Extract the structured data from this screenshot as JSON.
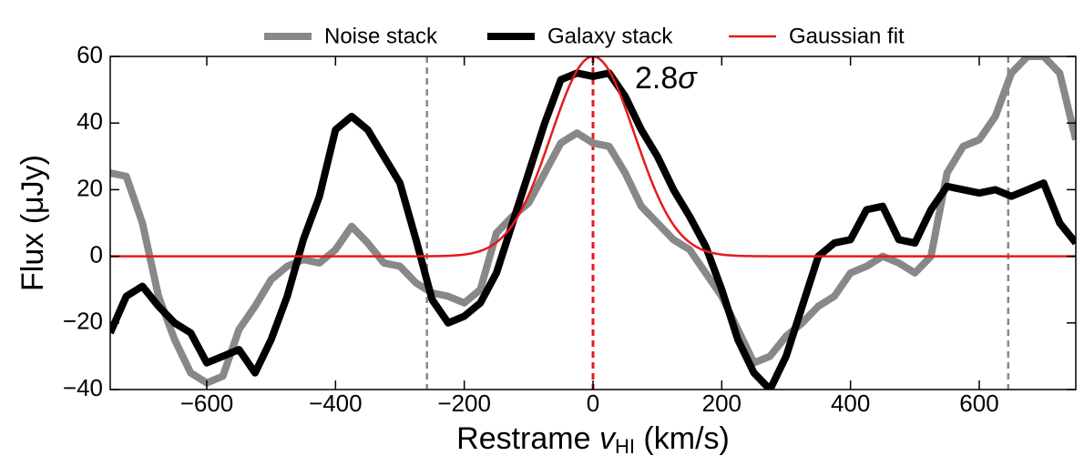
{
  "chart_data": {
    "type": "line",
    "ylabel": "Flux (μJy)",
    "xlabel": [
      "Restrame",
      "v",
      "HI",
      "(km/s)"
    ],
    "annotation": [
      "2.8",
      "σ"
    ],
    "xlim": [
      -750,
      750
    ],
    "ylim": [
      -40,
      60
    ],
    "xticks": [
      {
        "value": -600,
        "label": "−600"
      },
      {
        "value": -400,
        "label": "−400"
      },
      {
        "value": -200,
        "label": "−200"
      },
      0,
      200,
      400,
      600
    ],
    "yticks": [
      {
        "value": -40,
        "label": "−40"
      },
      {
        "value": -20,
        "label": "−20"
      },
      0,
      20,
      40,
      60
    ],
    "x": [
      -750,
      -725,
      -700,
      -675,
      -650,
      -625,
      -600,
      -575,
      -550,
      -525,
      -500,
      -475,
      -450,
      -425,
      -400,
      -375,
      -350,
      -325,
      -300,
      -275,
      -250,
      -225,
      -200,
      -175,
      -150,
      -125,
      -100,
      -75,
      -50,
      -25,
      0,
      25,
      50,
      75,
      100,
      125,
      150,
      175,
      200,
      225,
      250,
      275,
      300,
      325,
      350,
      375,
      400,
      425,
      450,
      475,
      500,
      525,
      550,
      575,
      600,
      625,
      650,
      675,
      700,
      725,
      750
    ],
    "series": [
      {
        "name": "Noise stack",
        "color": "#888888",
        "values": [
          25,
          24,
          10,
          -12,
          -25,
          -35,
          -38,
          -36,
          -22,
          -15,
          -7,
          -3,
          -1,
          -2,
          2,
          9,
          4,
          -2,
          -3,
          -8,
          -11,
          -12,
          -14,
          -10,
          7,
          12,
          16,
          25,
          34,
          37,
          34,
          33,
          25,
          15,
          10,
          5,
          2,
          -5,
          -12,
          -22,
          -32,
          -30,
          -24,
          -20,
          -15,
          -12,
          -5,
          -3,
          0,
          -2,
          -5,
          0,
          25,
          33,
          35,
          42,
          55,
          60,
          60,
          55,
          35
        ]
      },
      {
        "name": "Galaxy stack",
        "color": "#000000",
        "values": [
          -23,
          -12,
          -9,
          -15,
          -20,
          -23,
          -32,
          -30,
          -28,
          -35,
          -25,
          -12,
          5,
          18,
          38,
          42,
          38,
          30,
          22,
          5,
          -13,
          -20,
          -18,
          -14,
          -5,
          10,
          25,
          40,
          53,
          55,
          54,
          55,
          48,
          38,
          30,
          20,
          12,
          3,
          -10,
          -25,
          -35,
          -40,
          -30,
          -15,
          0,
          4,
          5,
          14,
          15,
          5,
          4,
          14,
          21,
          20,
          19,
          20,
          18,
          20,
          22,
          10,
          4
        ]
      }
    ],
    "gaussian": {
      "name": "Gaussian fit",
      "color": "#e41a1c",
      "amplitude": 60,
      "mean": 0,
      "sigma": 65
    },
    "vlines": [
      {
        "x": -258,
        "color": "#888888"
      },
      {
        "x": 0,
        "color": "#e41a1c"
      },
      {
        "x": 645,
        "color": "#888888"
      }
    ]
  }
}
